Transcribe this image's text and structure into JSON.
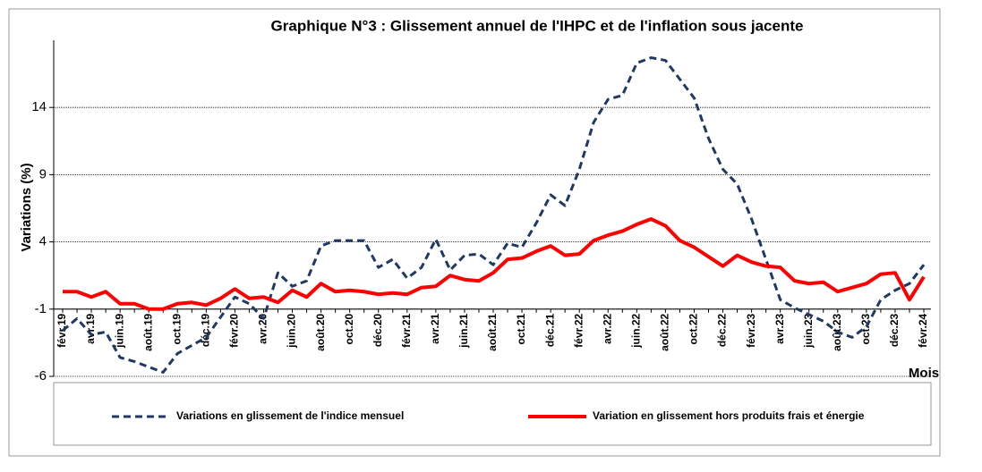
{
  "chart_data": {
    "type": "line",
    "title": "Graphique N°3 : Glissement annuel de l'IHPC et de l'inflation sous jacente",
    "y_label": "Variations (%)",
    "x_label": "Mois",
    "categories": [
      "févr.19",
      null,
      "avr.19",
      null,
      "juin.19",
      null,
      "août.19",
      null,
      "oct.19",
      null,
      "déc.19",
      null,
      "févr.20",
      null,
      "avr.20",
      null,
      "juin.20",
      null,
      "août.20",
      null,
      "oct.20",
      null,
      "déc.20",
      null,
      "févr.21",
      null,
      "avr.21",
      null,
      "juin.21",
      null,
      "août.21",
      null,
      "oct.21",
      null,
      "déc.21",
      null,
      "févr.22",
      null,
      "avr.22",
      null,
      "juin.22",
      null,
      "août.22",
      null,
      "oct.22",
      null,
      "déc.22",
      null,
      "févr.23",
      null,
      "avr.23",
      null,
      "juin.23",
      null,
      "août.23",
      null,
      "oct.23",
      null,
      "déc.23",
      null,
      "févr.24"
    ],
    "series": [
      {
        "name": "Variations en glissement de l'indice mensuel",
        "color": "#1f3864",
        "line_style": "dashed",
        "values": [
          -2.6,
          -1.7,
          -2.9,
          -2.7,
          -4.6,
          -4.9,
          -5.3,
          -5.7,
          -4.3,
          -3.7,
          -3.1,
          -1.6,
          -0.1,
          -0.6,
          -1.7,
          1.7,
          0.7,
          1.1,
          3.7,
          4.1,
          4.1,
          4.1,
          2.1,
          2.7,
          1.3,
          2.1,
          4.2,
          1.9,
          3.0,
          3.1,
          2.3,
          3.9,
          3.6,
          5.4,
          7.5,
          6.7,
          9.4,
          12.9,
          14.6,
          14.9,
          17.3,
          17.7,
          17.5,
          16.1,
          14.7,
          11.7,
          9.4,
          8.3,
          5.7,
          2.7,
          -0.3,
          -0.9,
          -1.4,
          -1.9,
          -2.7,
          -3.1,
          -2.3,
          -0.3,
          0.4,
          0.9,
          2.3
        ]
      },
      {
        "name": "Variation en glissement hors produits frais et énergie",
        "color": "#ff0000",
        "line_style": "solid",
        "values": [
          0.3,
          0.3,
          -0.1,
          0.3,
          -0.6,
          -0.6,
          -1.0,
          -1.0,
          -0.6,
          -0.5,
          -0.7,
          -0.2,
          0.5,
          -0.2,
          -0.1,
          -0.5,
          0.4,
          -0.1,
          0.9,
          0.3,
          0.4,
          0.3,
          0.1,
          0.2,
          0.1,
          0.6,
          0.7,
          1.5,
          1.2,
          1.1,
          1.7,
          2.7,
          2.8,
          3.3,
          3.7,
          3.0,
          3.1,
          4.1,
          4.5,
          4.8,
          5.3,
          5.7,
          5.2,
          4.1,
          3.6,
          2.9,
          2.2,
          3.0,
          2.5,
          2.2,
          2.1,
          1.1,
          0.9,
          1.0,
          0.3,
          0.6,
          0.9,
          1.6,
          1.7,
          -0.3,
          1.4
        ]
      }
    ],
    "ylim": [
      -6,
      19
    ],
    "yticks": [
      -6,
      -1,
      4,
      9,
      14
    ],
    "grid": true,
    "x_axis_at": -1,
    "legend": "bottom"
  }
}
